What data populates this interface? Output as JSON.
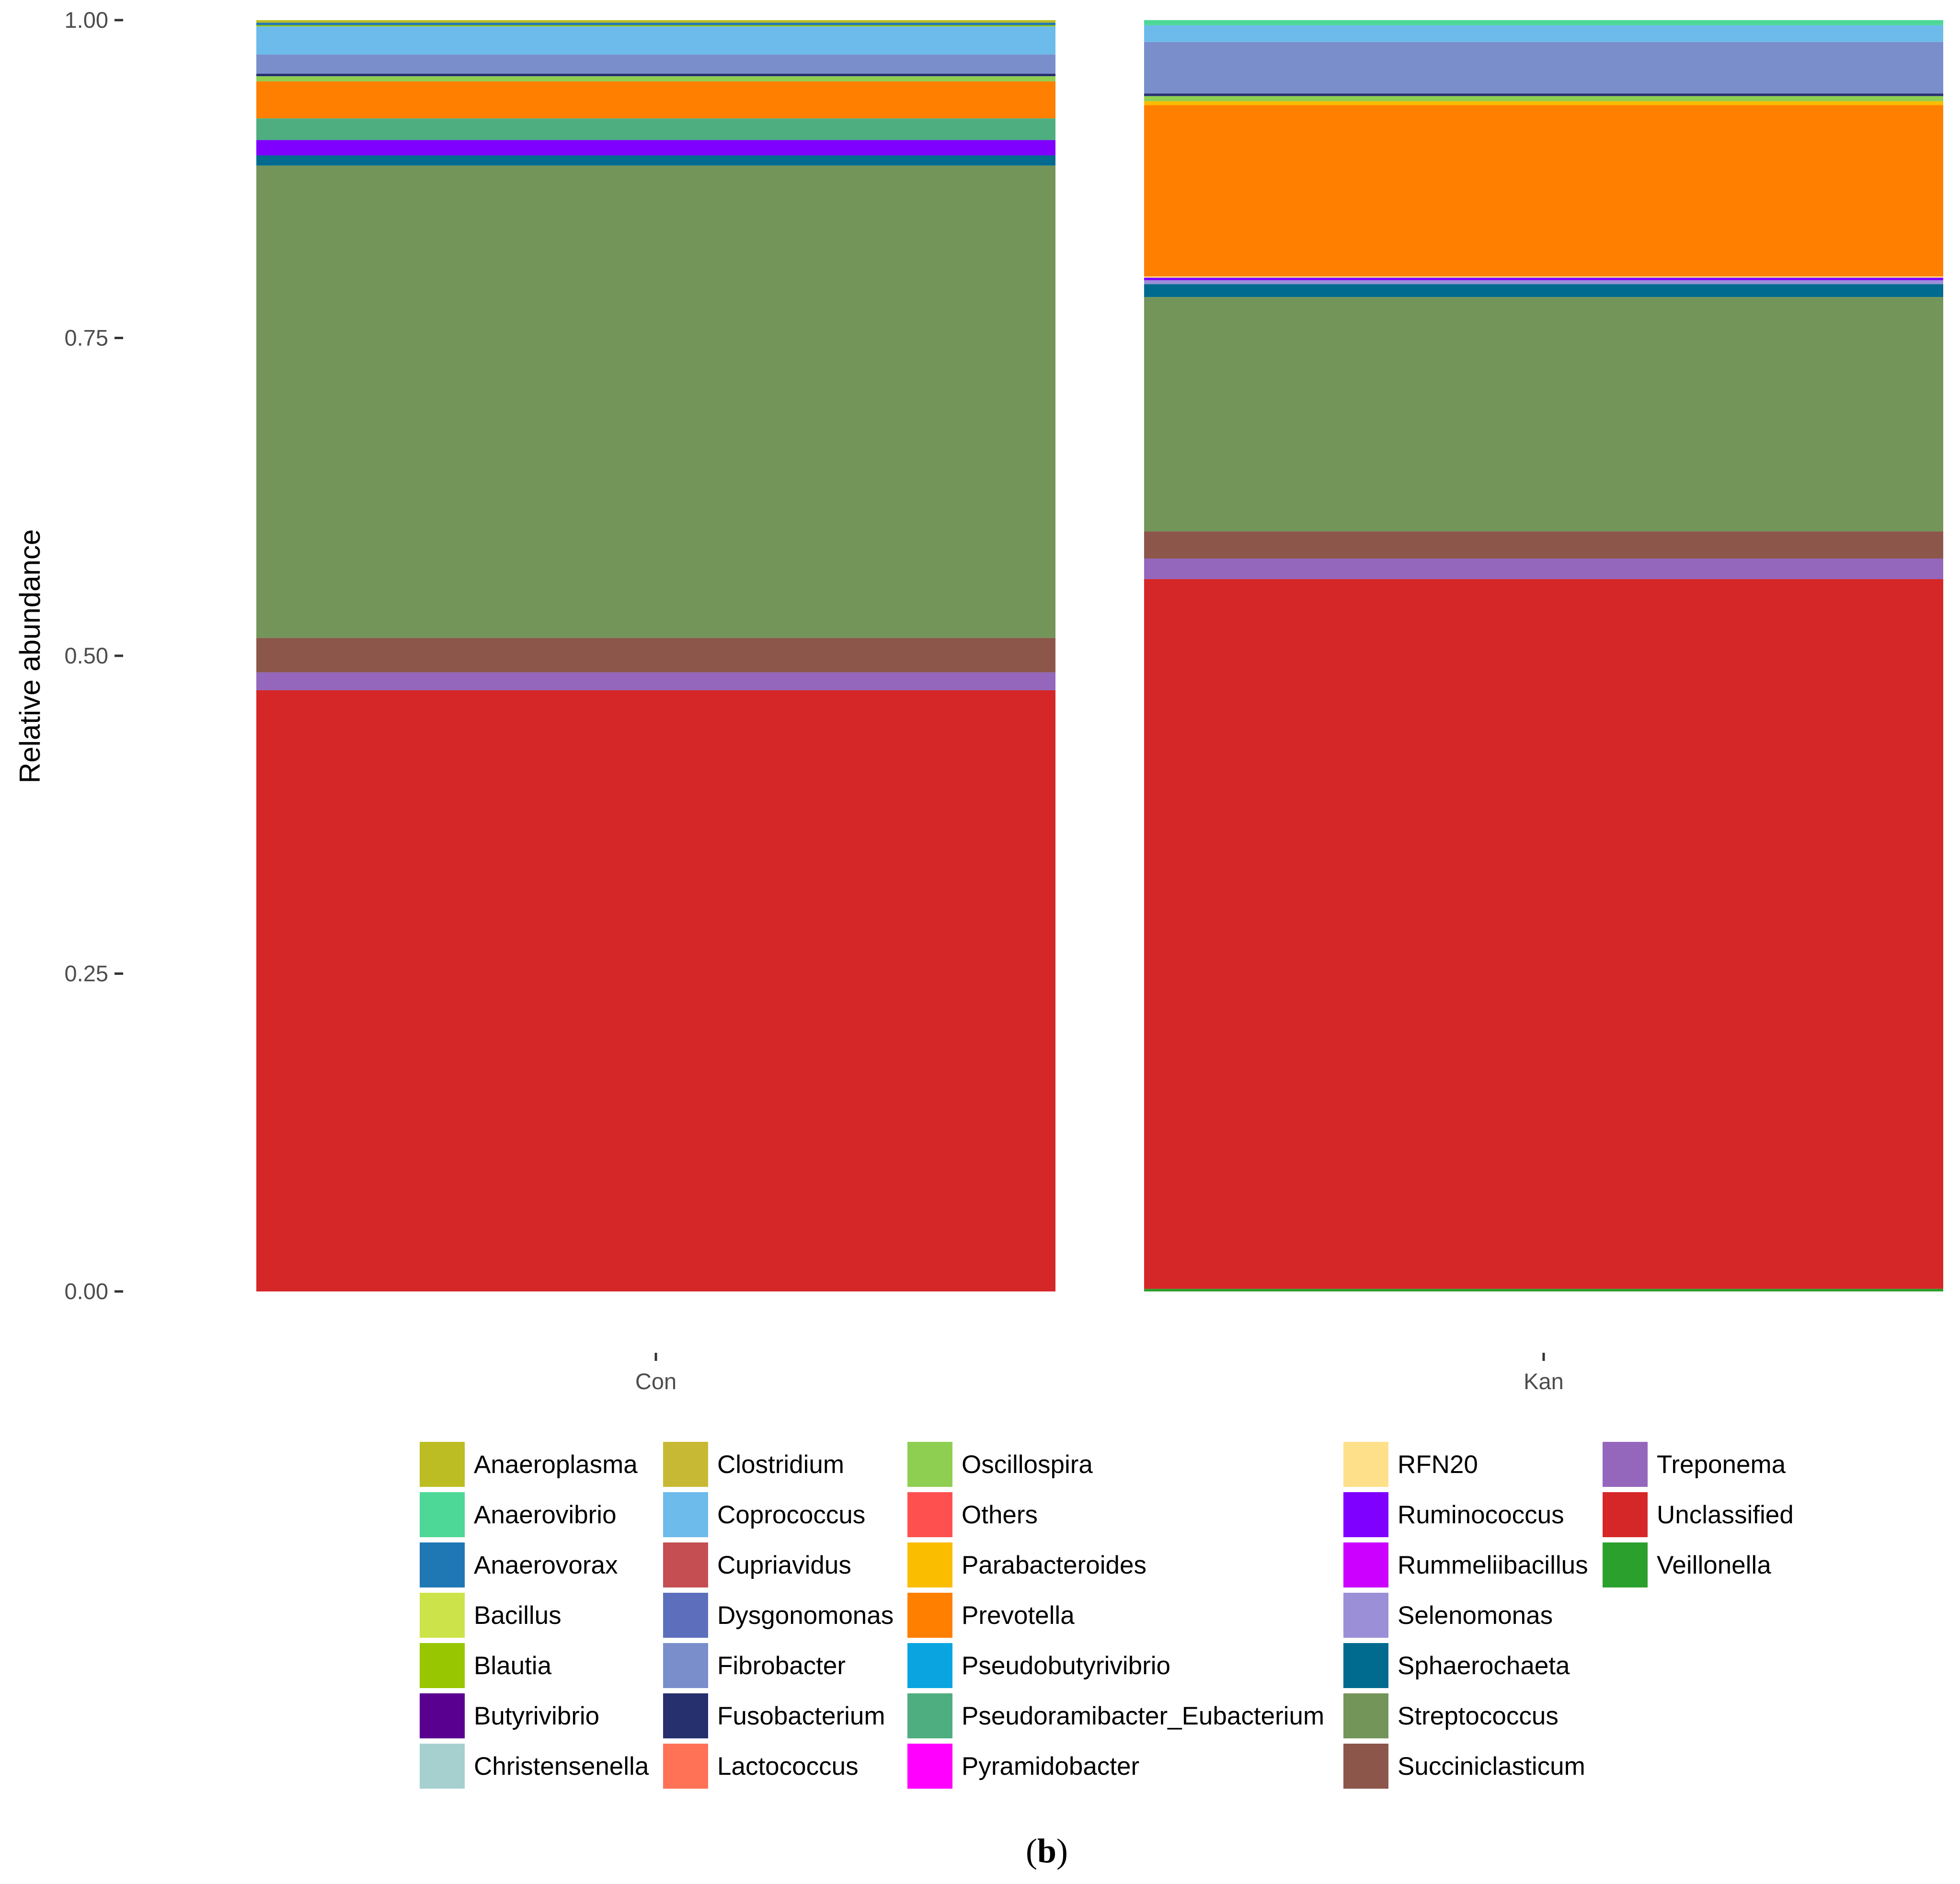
{
  "figure_label": {
    "open": "(",
    "letter": "b",
    "close": ")"
  },
  "chart_data": {
    "type": "bar",
    "stacked": true,
    "title": "",
    "xlabel": "",
    "ylabel": "Relative abundance",
    "ylim": [
      0,
      1
    ],
    "yticks": [
      0,
      0.25,
      0.5,
      0.75,
      1
    ],
    "ytick_labels": [
      "0.00",
      "0.25",
      "0.50",
      "0.75",
      "1.00"
    ],
    "categories": [
      "Con",
      "Kan"
    ],
    "legend_position": "bottom",
    "legend_columns": 6,
    "series": [
      {
        "name": "Anaeroplasma",
        "color": "#bcbd22",
        "values": [
          0.002,
          0.0
        ]
      },
      {
        "name": "Anaerovibrio",
        "color": "#4dd897",
        "values": [
          0.0,
          0.004
        ]
      },
      {
        "name": "Anaerovorax",
        "color": "#1f77b4",
        "values": [
          0.002,
          0.0
        ]
      },
      {
        "name": "Bacillus",
        "color": "#cce44a",
        "values": [
          0.0,
          0.0
        ]
      },
      {
        "name": "Blautia",
        "color": "#98c600",
        "values": [
          0.001,
          0.0
        ]
      },
      {
        "name": "Butyrivibrio",
        "color": "#5a0090",
        "values": [
          0.0,
          0.0
        ]
      },
      {
        "name": "Christensenella",
        "color": "#a6d0d0",
        "values": [
          0.0,
          0.0
        ]
      },
      {
        "name": "Clostridium",
        "color": "#c8b934",
        "values": [
          0.0,
          0.0
        ]
      },
      {
        "name": "Coprococcus",
        "color": "#6cbbeb",
        "values": [
          0.022,
          0.013
        ]
      },
      {
        "name": "Cupriavidus",
        "color": "#c44e52",
        "values": [
          0.0,
          0.0
        ]
      },
      {
        "name": "Dysgonomonas",
        "color": "#5d6fbc",
        "values": [
          0.0,
          0.0
        ]
      },
      {
        "name": "Fibrobacter",
        "color": "#7a8ecc",
        "values": [
          0.015,
          0.04
        ]
      },
      {
        "name": "Fusobacterium",
        "color": "#26306e",
        "values": [
          0.002,
          0.002
        ]
      },
      {
        "name": "Lactococcus",
        "color": "#ff7256",
        "values": [
          0.0,
          0.0
        ]
      },
      {
        "name": "Oscillospira",
        "color": "#8ecf52",
        "values": [
          0.004,
          0.004
        ]
      },
      {
        "name": "Others",
        "color": "#ff5050",
        "values": [
          0.0,
          0.0
        ]
      },
      {
        "name": "Parabacteroides",
        "color": "#fbbd00",
        "values": [
          0.0,
          0.003
        ]
      },
      {
        "name": "Prevotella",
        "color": "#ff7f00",
        "values": [
          0.029,
          0.133
        ]
      },
      {
        "name": "Pseudobutyrivibrio",
        "color": "#0aa5e0",
        "values": [
          0.0,
          0.0
        ]
      },
      {
        "name": "Pseudoramibacter_Eubacterium",
        "color": "#4fae80",
        "values": [
          0.017,
          0.0
        ]
      },
      {
        "name": "Pyramidobacter",
        "color": "#ff00ff",
        "values": [
          0.0,
          0.0
        ]
      },
      {
        "name": "RFN20",
        "color": "#fee08b",
        "values": [
          0.0,
          0.001
        ]
      },
      {
        "name": "Ruminococcus",
        "color": "#7f00ff",
        "values": [
          0.012,
          0.002
        ]
      },
      {
        "name": "Rummeliibacillus",
        "color": "#cc00ff",
        "values": [
          0.0,
          0.0
        ]
      },
      {
        "name": "Selenomonas",
        "color": "#9b8fd8",
        "values": [
          0.0,
          0.003
        ]
      },
      {
        "name": "Sphaerochaeta",
        "color": "#006b8f",
        "values": [
          0.008,
          0.01
        ]
      },
      {
        "name": "Streptococcus",
        "color": "#74955a",
        "values": [
          0.37,
          0.182
        ]
      },
      {
        "name": "Succiniclasticum",
        "color": "#8c564b",
        "values": [
          0.027,
          0.021
        ]
      },
      {
        "name": "Treponema",
        "color": "#9467bd",
        "values": [
          0.014,
          0.016
        ]
      },
      {
        "name": "Unclassified",
        "color": "#d62728",
        "values": [
          0.471,
          0.551
        ]
      },
      {
        "name": "Veillonella",
        "color": "#2ca02c",
        "values": [
          0.0,
          0.002
        ]
      }
    ]
  }
}
